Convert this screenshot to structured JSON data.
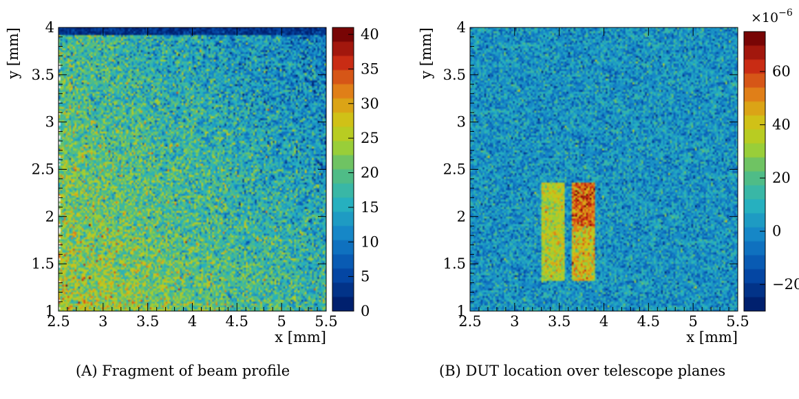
{
  "chart_data": [
    {
      "type": "heatmap",
      "caption": "(A) Fragment of beam profile",
      "xlabel": "x [mm]",
      "ylabel": "y [mm]",
      "xlim": [
        2.5,
        5.5
      ],
      "ylim": [
        1.0,
        4.0
      ],
      "x_ticks": [
        "2.5",
        "3",
        "3.5",
        "4",
        "4.5",
        "5",
        "5.5"
      ],
      "y_ticks": [
        "1",
        "1.5",
        "2",
        "2.5",
        "3",
        "3.5",
        "4"
      ],
      "colorbar": {
        "range": [
          0,
          41
        ],
        "ticks": [
          "0",
          "5",
          "10",
          "15",
          "20",
          "25",
          "30",
          "35",
          "40"
        ],
        "exponent_label": ""
      },
      "bins": [
        150,
        150
      ],
      "pattern": {
        "description_values": {
          "top_row_mean": 3,
          "lower_left_mean": 24,
          "upper_right_mean": 12
        }
      }
    },
    {
      "type": "heatmap",
      "caption": "(B) DUT location over telescope planes",
      "xlabel": "x [mm]",
      "ylabel": "y [mm]",
      "xlim": [
        2.5,
        5.5
      ],
      "ylim": [
        1.0,
        4.0
      ],
      "x_ticks": [
        "2.5",
        "3",
        "3.5",
        "4",
        "4.5",
        "5",
        "5.5"
      ],
      "y_ticks": [
        "1",
        "1.5",
        "2",
        "2.5",
        "3",
        "3.5",
        "4"
      ],
      "colorbar": {
        "range": [
          -30,
          75
        ],
        "ticks": [
          "−20",
          "0",
          "20",
          "40",
          "60"
        ],
        "tick_values": [
          -20,
          0,
          20,
          40,
          60
        ],
        "exponent_label": "×10",
        "exponent_power": "−6"
      },
      "bins": [
        150,
        150
      ],
      "regions": [
        {
          "x": [
            3.3,
            3.55
          ],
          "y": [
            1.32,
            2.35
          ],
          "mean": 35
        },
        {
          "x": [
            3.65,
            3.9
          ],
          "y": [
            1.32,
            2.35
          ],
          "mean": 40,
          "upper_mean": 55
        }
      ],
      "background_mean": 2
    }
  ]
}
